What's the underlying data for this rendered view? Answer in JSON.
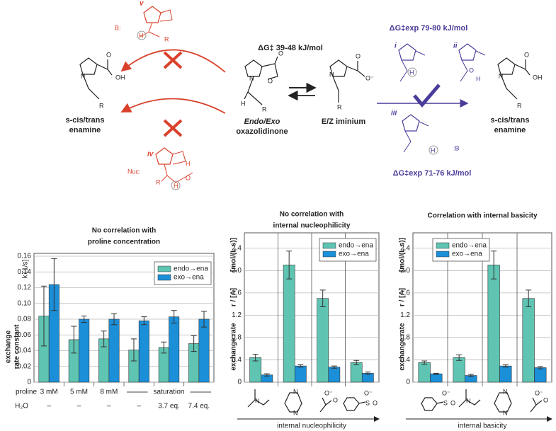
{
  "scheme": {
    "dg_center": "ΔG‡ 39-48 kJ/mol",
    "dg_exp_top": "ΔG‡exp 79-80 kJ/mol",
    "dg_exp_bottom": "ΔG‡exp 71-76 kJ/mol",
    "oxazolidinone": [
      "Endo/Exo",
      "oxazolidinone"
    ],
    "iminium": "E/Z iminium",
    "enamine_left": [
      "s-cis/trans",
      "enamine"
    ],
    "enamine_right": [
      "s-cis/trans",
      "enamine"
    ],
    "numerals": [
      "i",
      "ii",
      "iii",
      "iv",
      "v"
    ],
    "atoms": [
      "N",
      "OH",
      "O",
      "R",
      "N",
      "O",
      "O",
      "H",
      "R",
      "N",
      "O",
      "O⁻",
      "R",
      "N",
      "OH",
      "O",
      "R",
      "B:",
      "H",
      "R",
      "Nuc:",
      "H",
      "O",
      "H",
      "R",
      "H",
      "H",
      "O",
      ":B",
      "H",
      "N",
      "N",
      "N",
      "O⁻",
      "O",
      "S",
      "O⁻",
      "O",
      "N",
      "N",
      "N",
      "O⁻",
      "O",
      "S",
      "O⁻",
      "O"
    ]
  },
  "chart_data": [
    {
      "type": "bar",
      "title": [
        "No correlation with",
        "proline concentration"
      ],
      "y_label": [
        "exchange",
        "rate constant",
        "k [1/s]"
      ],
      "row_labels": [
        "proline",
        "H₂O"
      ],
      "categories": [
        "3 mM",
        "5 mM",
        "8 mM",
        null,
        null,
        null
      ],
      "group_label": "saturation",
      "h2o_labels": [
        "–",
        "–",
        "–",
        "–",
        "3.7 eq.",
        "7.4 eq."
      ],
      "series": [
        {
          "name": "endo→ena",
          "color": "#5fc4b2",
          "values": [
            0.084,
            0.054,
            0.055,
            0.041,
            0.044,
            0.049
          ],
          "errors": [
            0.038,
            0.017,
            0.01,
            0.014,
            0.007,
            0.01
          ]
        },
        {
          "name": "exo→ena",
          "color": "#1b8fd8",
          "values": [
            0.124,
            0.08,
            0.08,
            0.078,
            0.083,
            0.08
          ],
          "errors": [
            0.033,
            0.004,
            0.007,
            0.005,
            0.008,
            0.01
          ]
        }
      ],
      "ylim": [
        0,
        0.16
      ],
      "yticks": [
        0,
        0.02,
        0.04,
        0.06,
        0.08,
        {
          "value": 0.1,
          "label": "0.10"
        },
        0.12,
        0.14,
        0.16
      ],
      "grid": true,
      "legend": "top-right"
    },
    {
      "type": "bar",
      "title": [
        "No correlation with",
        "internal nucleophilicity"
      ],
      "y_label": [
        "exchange rate",
        "r / [A]",
        "[mol/(L s)]"
      ],
      "categories": [
        null,
        null,
        null,
        null
      ],
      "x_label": "internal nucleophilicity",
      "series": [
        {
          "name": "endo→ena",
          "color": "#5fc4b2",
          "values": [
            0.44,
            2.1,
            1.5,
            0.35
          ],
          "errors": [
            0.06,
            0.25,
            0.15,
            0.04
          ]
        },
        {
          "name": "exo→ena",
          "color": "#1b8fd8",
          "values": [
            0.13,
            0.29,
            0.27,
            0.16
          ],
          "errors": [
            0.02,
            0.02,
            0.02,
            0.02
          ]
        }
      ],
      "ylim": [
        0,
        2.6
      ],
      "yticks": [
        0,
        0.4,
        0.8,
        1.2,
        1.6,
        {
          "value": 2,
          "label": "2.0"
        },
        2.4
      ],
      "grid": true,
      "legend": "top-right"
    },
    {
      "type": "bar",
      "title": [
        "Correlation with internal basicity"
      ],
      "y_label": [
        "exchange rate",
        "r / [A]",
        "[mol/(L s)]"
      ],
      "categories": [
        null,
        null,
        null,
        null
      ],
      "x_label": "internal basicity",
      "series": [
        {
          "name": "endo→ena",
          "color": "#5fc4b2",
          "values": [
            0.35,
            0.44,
            2.1,
            1.5
          ],
          "errors": [
            0.03,
            0.05,
            0.25,
            0.15
          ]
        },
        {
          "name": "exo→ena",
          "color": "#1b8fd8",
          "values": [
            0.15,
            0.12,
            0.29,
            0.26
          ],
          "errors": [
            0.01,
            0.02,
            0.02,
            0.02
          ]
        }
      ],
      "ylim": [
        0,
        2.6
      ],
      "yticks": [
        0,
        0.4,
        0.8,
        1.2,
        1.6,
        {
          "value": 2,
          "label": "2.0"
        },
        2.4
      ],
      "grid": true,
      "legend": "top-left"
    }
  ]
}
